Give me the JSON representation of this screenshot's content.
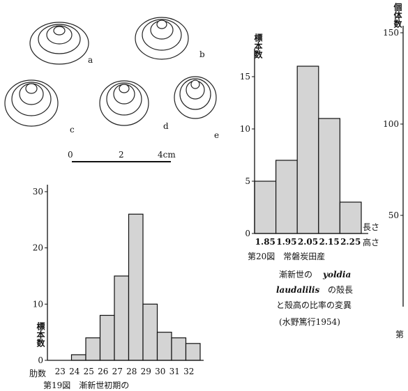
{
  "shells": {
    "labels": [
      "a",
      "b",
      "c",
      "d",
      "e"
    ],
    "scale": [
      "0",
      "2",
      "4cm"
    ]
  },
  "chart_data": [
    {
      "type": "bar",
      "categories": [
        "23",
        "24",
        "25",
        "26",
        "27",
        "28",
        "29",
        "30",
        "31",
        "32"
      ],
      "values": [
        0,
        1,
        4,
        8,
        15,
        26,
        10,
        5,
        4,
        3
      ],
      "color": "#d4d4d4",
      "ylim": [
        0,
        30
      ],
      "yticks": [
        0,
        10,
        20,
        30
      ],
      "ylabel": "標本数",
      "xlabel": "肋数",
      "caption": [
        "第19図　漸新世初期の"
      ]
    },
    {
      "type": "bar",
      "categories": [
        "1.85",
        "1.95",
        "2.05",
        "2.15",
        "2.25"
      ],
      "values": [
        5,
        7,
        16,
        11,
        3
      ],
      "color": "#d4d4d4",
      "ylim": [
        0,
        17
      ],
      "yticks": [
        0,
        5,
        10,
        15
      ],
      "ylabel": "標本数",
      "xlabel": [
        "長さ",
        "高さ"
      ],
      "caption": [
        "第20図　常磐炭田産",
        "漸新世の",
        "yoldia",
        "laudalilis",
        "の殻長",
        "と殻高の比率の変異",
        "(水野篤行1954)"
      ]
    },
    {
      "type": "bar",
      "ylim": [
        0,
        150
      ],
      "yticks": [
        50,
        100,
        150
      ],
      "ylabel": "個体数",
      "caption": [
        "第"
      ]
    }
  ]
}
